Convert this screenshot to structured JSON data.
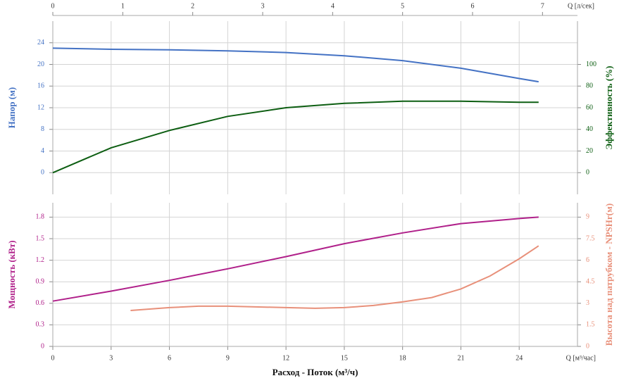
{
  "chart_data": [
    {
      "type": "line",
      "ylabel": "Напор (м)",
      "y2label": "Эффективность (%)",
      "x2label": "Q [л/сек]",
      "xlim": [
        0,
        27
      ],
      "xticks": [
        0,
        3,
        6,
        9,
        12,
        15,
        18,
        21,
        24
      ],
      "x2lim": [
        0,
        7.5
      ],
      "x2ticks": [
        0,
        1,
        2,
        3,
        4,
        5,
        6,
        7
      ],
      "ylim": [
        -4,
        28
      ],
      "yticks": [
        0,
        4,
        8,
        12,
        16,
        20,
        24
      ],
      "y2lim": [
        -20,
        140
      ],
      "y2ticks": [
        0,
        20,
        40,
        60,
        80,
        100
      ],
      "grid": true,
      "series": [
        {
          "name": "Напор",
          "color": "#4472c4",
          "axis": "y",
          "x": [
            0,
            3,
            6,
            9,
            12,
            15,
            18,
            21,
            24,
            25
          ],
          "values": [
            23.0,
            22.8,
            22.7,
            22.5,
            22.2,
            21.6,
            20.7,
            19.3,
            17.4,
            16.8
          ]
        },
        {
          "name": "Эффективность",
          "color": "#0d5e12",
          "axis": "y2",
          "x": [
            0,
            3,
            6,
            9,
            12,
            15,
            18,
            21,
            24,
            25
          ],
          "values": [
            0,
            23,
            39,
            52,
            60,
            64,
            66,
            66,
            65,
            65
          ]
        }
      ]
    },
    {
      "type": "line",
      "xlabel": "Расход - Поток (м³/ч)",
      "xunit": "Q [м³/час]",
      "ylabel": "Мощность (кВт)",
      "y2label": "Высота над патрубком - NPSHr(м)",
      "xlim": [
        0,
        27
      ],
      "xticks": [
        0,
        3,
        6,
        9,
        12,
        15,
        18,
        21,
        24
      ],
      "ylim": [
        0,
        2
      ],
      "yticks": [
        0,
        0.3,
        0.6,
        0.9,
        1.2,
        1.5,
        1.8
      ],
      "y2lim": [
        0,
        10
      ],
      "y2ticks": [
        0,
        1.5,
        3,
        4.5,
        6,
        7.5,
        9
      ],
      "grid": true,
      "series": [
        {
          "name": "Мощность",
          "color": "#b0208a",
          "axis": "y",
          "x": [
            0,
            3,
            6,
            9,
            12,
            15,
            18,
            21,
            24,
            25
          ],
          "values": [
            0.63,
            0.77,
            0.92,
            1.08,
            1.25,
            1.43,
            1.58,
            1.71,
            1.78,
            1.8
          ]
        },
        {
          "name": "NPSHr",
          "color": "#e8907a",
          "axis": "y2",
          "x": [
            4,
            6,
            7.5,
            9,
            12,
            13.5,
            15,
            16.5,
            18,
            19.5,
            21,
            22.5,
            24,
            25
          ],
          "values": [
            2.5,
            2.7,
            2.8,
            2.8,
            2.7,
            2.65,
            2.7,
            2.85,
            3.1,
            3.4,
            4.0,
            4.9,
            6.1,
            7.0
          ]
        }
      ]
    }
  ]
}
